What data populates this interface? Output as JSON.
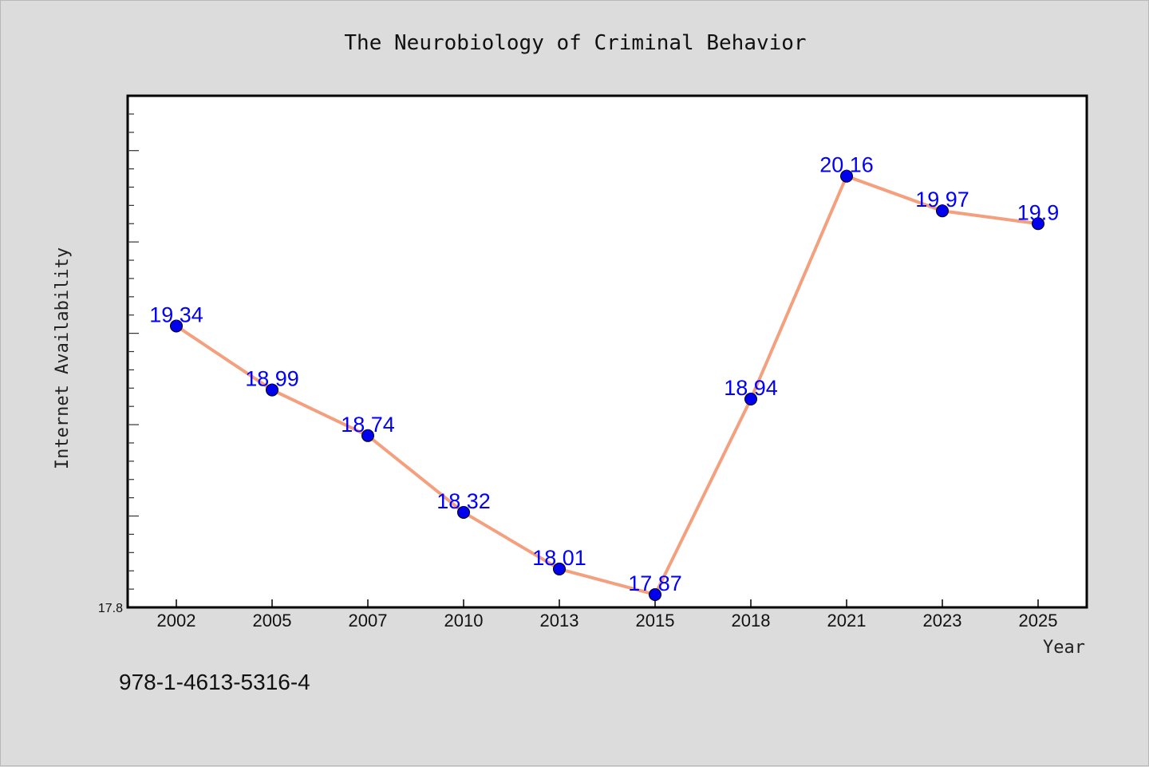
{
  "chart_data": {
    "type": "line",
    "title": "The Neurobiology of Criminal Behavior",
    "xlabel": "Year",
    "ylabel": "Internet Availability",
    "categories": [
      "2002",
      "2005",
      "2007",
      "2010",
      "2013",
      "2015",
      "2018",
      "2021",
      "2023",
      "2025"
    ],
    "series": [
      {
        "values": [
          19.34,
          18.99,
          18.74,
          18.32,
          18.01,
          17.87,
          18.94,
          20.16,
          19.97,
          19.9
        ],
        "labels": [
          "19.34",
          "18.99",
          "18.74",
          "18.32",
          "18.01",
          "17.87",
          "18.94",
          "20.16",
          "19.97",
          "19.9"
        ]
      }
    ],
    "ylim": [
      17.8,
      20.6
    ],
    "y_tick_labels": [
      "17.8"
    ],
    "grid": false,
    "line_color": "#f4a07e",
    "marker_color": "#0000ee",
    "label_color": "#0000ff"
  },
  "footer": {
    "isbn": "978-1-4613-5316-4"
  }
}
